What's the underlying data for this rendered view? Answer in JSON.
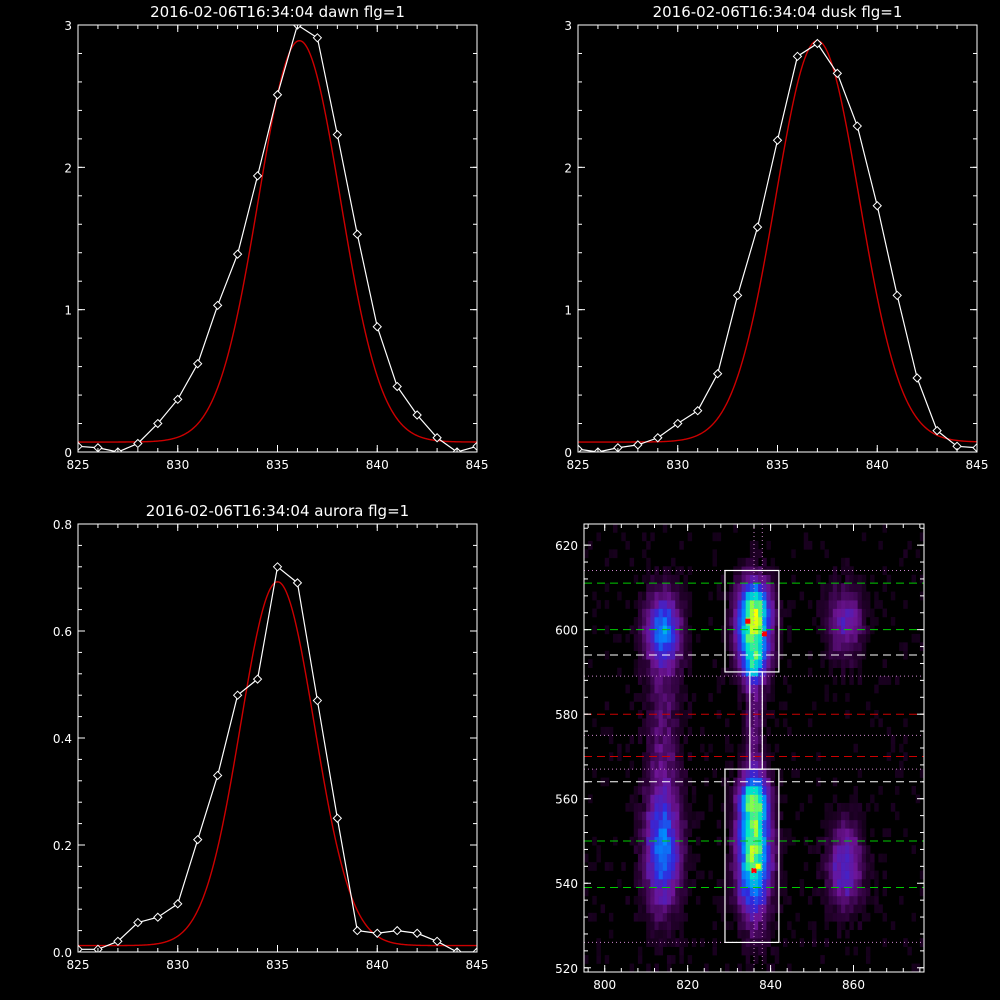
{
  "chart_data": [
    {
      "id": "dawn",
      "type": "line",
      "title": "2016-02-06T16:34:04 dawn flg=1",
      "xlim": [
        825,
        845
      ],
      "ylim": [
        0,
        3
      ],
      "xticks": [
        "825",
        "830",
        "835",
        "840",
        "845"
      ],
      "yticks": [
        "0",
        "1",
        "2",
        "3"
      ],
      "series": [
        {
          "marker": "diamond",
          "color": "#ffffff",
          "x": [
            825,
            826,
            827,
            828,
            829,
            830,
            831,
            832,
            833,
            834,
            835,
            836,
            837,
            838,
            839,
            840,
            841,
            842,
            843,
            844,
            845
          ],
          "y": [
            0.04,
            0.03,
            0.0,
            0.06,
            0.2,
            0.37,
            0.62,
            1.03,
            1.39,
            1.94,
            2.51,
            3.0,
            2.91,
            2.23,
            1.53,
            0.88,
            0.46,
            0.26,
            0.1,
            0.0,
            0.04
          ]
        },
        {
          "kind": "gaussian-fit",
          "color": "#cc0000",
          "amp": 2.82,
          "center": 836.1,
          "sigma": 2.05,
          "offset": 0.07
        }
      ]
    },
    {
      "id": "dusk",
      "type": "line",
      "title": "2016-02-06T16:34:04 dusk flg=1",
      "xlim": [
        825,
        845
      ],
      "ylim": [
        0,
        3
      ],
      "xticks": [
        "825",
        "830",
        "835",
        "840",
        "845"
      ],
      "yticks": [
        "0",
        "1",
        "2",
        "3"
      ],
      "series": [
        {
          "marker": "diamond",
          "color": "#ffffff",
          "x": [
            825,
            826,
            827,
            828,
            829,
            830,
            831,
            832,
            833,
            834,
            835,
            836,
            837,
            838,
            839,
            840,
            841,
            842,
            843,
            844,
            845
          ],
          "y": [
            0.02,
            0.0,
            0.03,
            0.05,
            0.1,
            0.2,
            0.29,
            0.55,
            1.1,
            1.58,
            2.19,
            2.78,
            2.87,
            2.66,
            2.29,
            1.73,
            1.1,
            0.52,
            0.15,
            0.04,
            0.03
          ]
        },
        {
          "kind": "gaussian-fit",
          "color": "#cc0000",
          "amp": 2.82,
          "center": 837.0,
          "sigma": 2.1,
          "offset": 0.07
        }
      ]
    },
    {
      "id": "aurora",
      "type": "line",
      "title": "2016-02-06T16:34:04 aurora flg=1",
      "xlim": [
        825,
        845
      ],
      "ylim": [
        0,
        0.8
      ],
      "xticks": [
        "825",
        "830",
        "835",
        "840",
        "845"
      ],
      "yticks": [
        "0.0",
        "0.2",
        "0.4",
        "0.6",
        "0.8"
      ],
      "series": [
        {
          "marker": "diamond",
          "color": "#ffffff",
          "x": [
            825,
            826,
            827,
            828,
            829,
            830,
            831,
            832,
            833,
            834,
            835,
            836,
            837,
            838,
            839,
            840,
            841,
            842,
            843,
            844,
            845
          ],
          "y": [
            0.005,
            0.005,
            0.02,
            0.055,
            0.065,
            0.09,
            0.21,
            0.33,
            0.48,
            0.51,
            0.72,
            0.69,
            0.47,
            0.25,
            0.04,
            0.035,
            0.04,
            0.035,
            0.02,
            0.0,
            0.0
          ]
        },
        {
          "kind": "gaussian-fit",
          "color": "#cc0000",
          "amp": 0.68,
          "center": 835.0,
          "sigma": 1.85,
          "offset": 0.012
        }
      ]
    },
    {
      "id": "spectral-image",
      "type": "heatmap",
      "xlim": [
        795,
        877
      ],
      "ylim": [
        519,
        625
      ],
      "xticks": [
        "800",
        "820",
        "840",
        "860"
      ],
      "yticks": [
        "520",
        "540",
        "560",
        "580",
        "600",
        "620"
      ],
      "blobs": [
        {
          "x": 836,
          "y": 603,
          "sx": 2.8,
          "sy": 6,
          "amp": 0.95
        },
        {
          "x": 836,
          "y": 592,
          "sx": 2.5,
          "sy": 4,
          "amp": 0.5
        },
        {
          "x": 836,
          "y": 547,
          "sx": 2.8,
          "sy": 10,
          "amp": 0.85
        },
        {
          "x": 836,
          "y": 560,
          "sx": 2.5,
          "sy": 4,
          "amp": 0.45
        },
        {
          "x": 836,
          "y": 577,
          "sx": 1.5,
          "sy": 10,
          "amp": 0.2
        },
        {
          "x": 814,
          "y": 600,
          "sx": 3,
          "sy": 6,
          "amp": 0.55
        },
        {
          "x": 814,
          "y": 548,
          "sx": 3,
          "sy": 10,
          "amp": 0.55
        },
        {
          "x": 814,
          "y": 577,
          "sx": 3,
          "sy": 12,
          "amp": 0.18
        },
        {
          "x": 858,
          "y": 602,
          "sx": 3,
          "sy": 6,
          "amp": 0.32
        },
        {
          "x": 858,
          "y": 544,
          "sx": 3,
          "sy": 7,
          "amp": 0.38
        }
      ],
      "hot_spots": [
        {
          "x": 834.5,
          "y": 602,
          "color": "#ff0000"
        },
        {
          "x": 838.5,
          "y": 599,
          "color": "#ff0000"
        },
        {
          "x": 836,
          "y": 543,
          "color": "#ff0000"
        },
        {
          "x": 837,
          "y": 544,
          "color": "#ffff00"
        }
      ],
      "boxes": [
        {
          "x0": 829,
          "x1": 842,
          "y0": 590,
          "y1": 614
        },
        {
          "x0": 835,
          "x1": 838,
          "y0": 567,
          "y1": 590
        },
        {
          "x0": 829,
          "x1": 842,
          "y0": 526,
          "y1": 567
        }
      ],
      "hlines": [
        {
          "y": 611,
          "color": "#00cc00",
          "style": "dashed"
        },
        {
          "y": 600,
          "color": "#00cc00",
          "style": "dashed"
        },
        {
          "y": 594,
          "color": "#ffffff",
          "style": "dashed"
        },
        {
          "y": 580,
          "color": "#cc0000",
          "style": "dashed"
        },
        {
          "y": 570,
          "color": "#cc0000",
          "style": "dashed"
        },
        {
          "y": 564,
          "color": "#ffffff",
          "style": "dashed"
        },
        {
          "y": 550,
          "color": "#00cc00",
          "style": "dashed"
        },
        {
          "y": 539,
          "color": "#00cc00",
          "style": "dashed"
        },
        {
          "y": 614,
          "color": "#cc88cc",
          "style": "dotted"
        },
        {
          "y": 589,
          "color": "#cc88cc",
          "style": "dotted"
        },
        {
          "y": 575,
          "color": "#cc88cc",
          "style": "dotted"
        },
        {
          "y": 567,
          "color": "#cc88cc",
          "style": "dotted"
        },
        {
          "y": 526,
          "color": "#cc88cc",
          "style": "dotted"
        }
      ],
      "vlines": [
        {
          "x": 836,
          "color": "#cc88cc",
          "style": "dotted"
        },
        {
          "x": 838,
          "color": "#cc88cc",
          "style": "dotted"
        }
      ]
    }
  ]
}
